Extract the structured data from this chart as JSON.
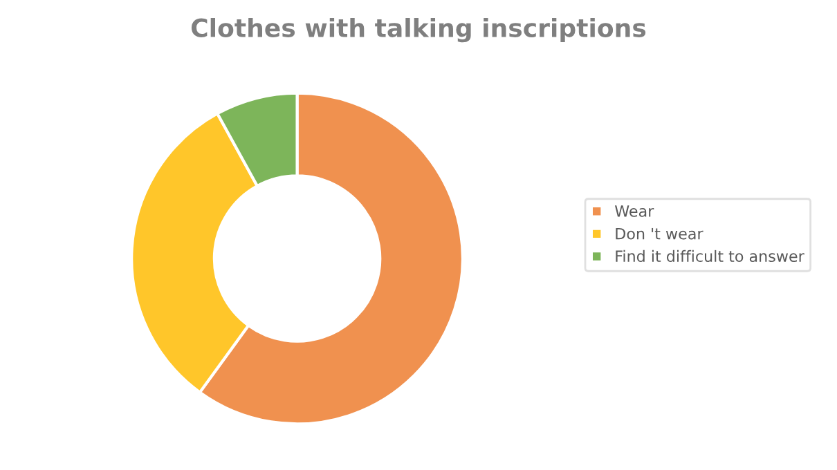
{
  "chart_data": {
    "type": "donut",
    "title": "Clothes with talking inscriptions",
    "categories": [
      "Wear",
      "Don 't wear",
      "Find it difficult to answer"
    ],
    "values": [
      60,
      32,
      8
    ],
    "colors": [
      "#f0914f",
      "#ffc62a",
      "#7db55a"
    ],
    "legend": "right"
  }
}
